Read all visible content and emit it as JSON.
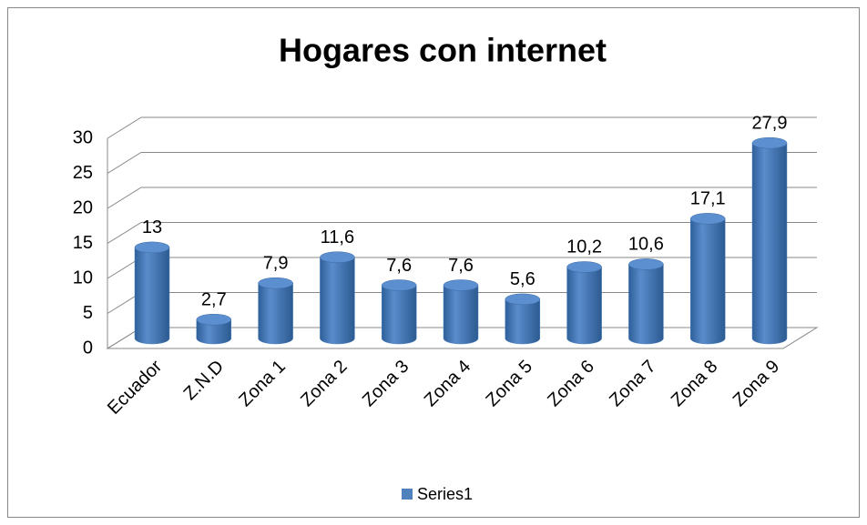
{
  "chart_data": {
    "type": "bar",
    "title": "Hogares con internet",
    "categories": [
      "Ecuador",
      "Z.N.D",
      "Zona 1",
      "Zona 2",
      "Zona 3",
      "Zona 4",
      "Zona 5",
      "Zona 6",
      "Zona 7",
      "Zona 8",
      "Zona 9"
    ],
    "series": [
      {
        "name": "Series1",
        "color": "#4f81bd",
        "values": [
          13,
          2.7,
          7.9,
          11.6,
          7.6,
          7.6,
          5.6,
          10.2,
          10.6,
          17.1,
          27.9
        ],
        "value_labels": [
          "13",
          "2,7",
          "7,9",
          "11,6",
          "7,6",
          "7,6",
          "5,6",
          "10,2",
          "10,6",
          "17,1",
          "27,9"
        ]
      }
    ],
    "ylim": [
      0,
      30
    ],
    "yticks": [
      0,
      5,
      10,
      15,
      20,
      25,
      30
    ],
    "grid": true,
    "legend": "bottom"
  }
}
